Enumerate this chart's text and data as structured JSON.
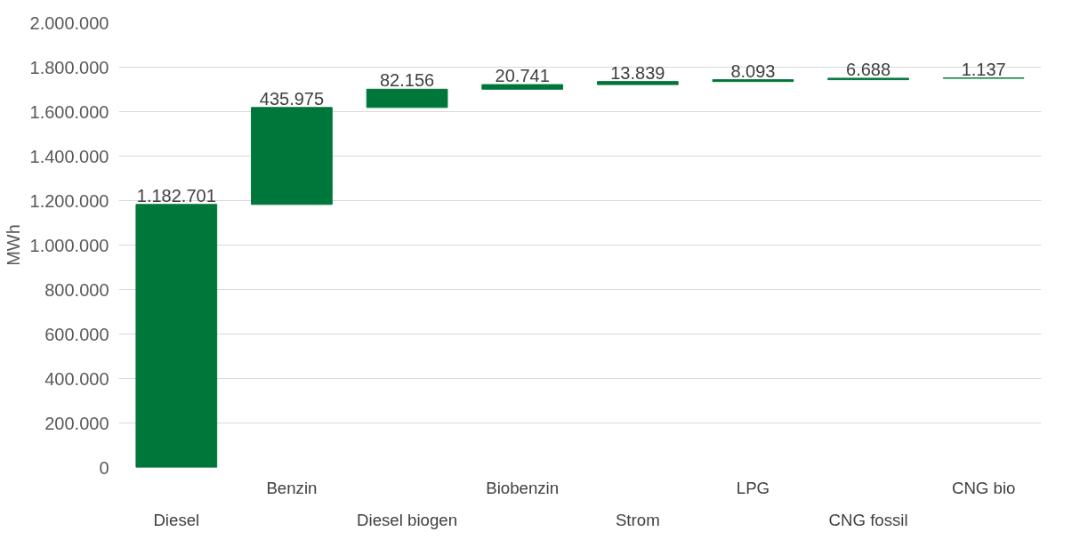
{
  "chart_data": {
    "type": "bar",
    "ylabel": "MWh",
    "categories": [
      "Diesel",
      "Benzin",
      "Diesel biogen",
      "Biobenzin",
      "Strom",
      "LPG",
      "CNG fossil",
      "CNG bio"
    ],
    "values": [
      1182701,
      435975,
      82156,
      20741,
      13839,
      8093,
      6688,
      1137
    ],
    "base": [
      0,
      1182701,
      1618676,
      1700832,
      1721573,
      1735412,
      1743505,
      1750193
    ],
    "color": "#00773a",
    "value_labels": [
      "1.182.701",
      "435.975",
      "82.156",
      "20.741",
      "13.839",
      "8.093",
      "6.688",
      "1.137"
    ],
    "ylim": [
      0,
      2000000
    ],
    "yticks": [
      0,
      {
        "value": 200000,
        "label": "200.000"
      },
      {
        "value": 400000,
        "label": "400.000"
      },
      {
        "value": 600000,
        "label": "600.000"
      },
      {
        "value": 800000,
        "label": "800.000"
      },
      {
        "value": 1000000,
        "label": "1.000.000"
      },
      {
        "value": 1200000,
        "label": "1.200.000"
      },
      {
        "value": 1400000,
        "label": "1.400.000"
      },
      {
        "value": 1600000,
        "label": "1.600.000"
      },
      {
        "value": 1800000,
        "label": "1.800.000"
      },
      {
        "value": 2000000,
        "label": "2.000.000"
      }
    ],
    "grid": "y"
  }
}
